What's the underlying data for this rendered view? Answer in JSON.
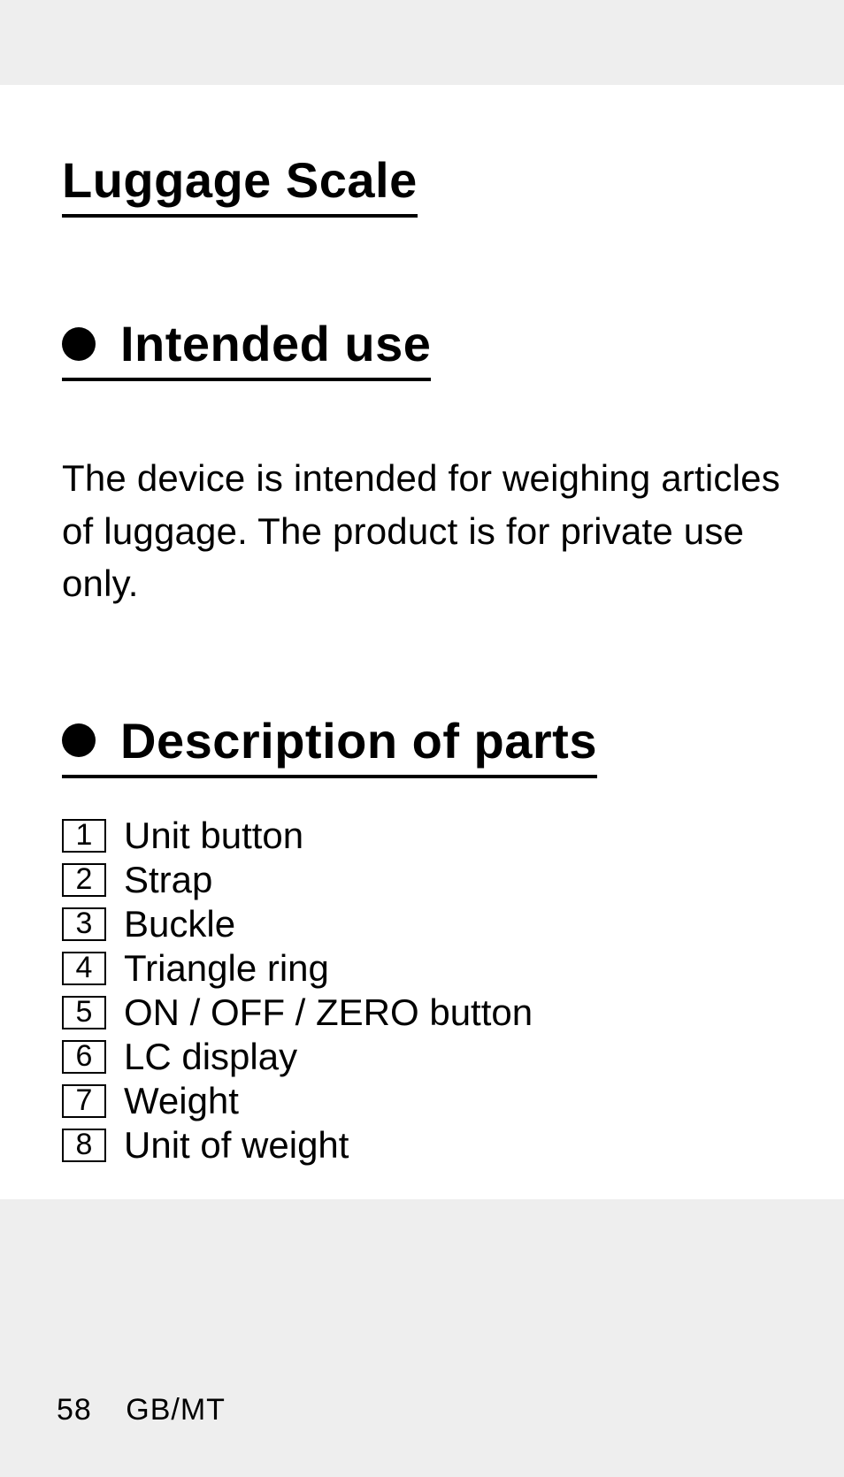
{
  "colors": {
    "page_bg": "#ffffff",
    "outer_bg": "#eeeeee",
    "text": "#000000",
    "rule": "#000000"
  },
  "typography": {
    "title_fontsize_pt": 42,
    "heading_fontsize_pt": 42,
    "body_fontsize_pt": 31,
    "footer_fontsize_pt": 25,
    "font_family": "Futura / geometric sans-serif"
  },
  "title": "Luggage Scale",
  "sections": [
    {
      "heading": "Intended use",
      "body": "The device is intended for weighing articles of luggage. The product is for private use only."
    },
    {
      "heading": "Description of parts",
      "parts": [
        {
          "n": "1",
          "label": "Unit button"
        },
        {
          "n": "2",
          "label": "Strap"
        },
        {
          "n": "3",
          "label": "Buckle"
        },
        {
          "n": "4",
          "label": "Triangle ring"
        },
        {
          "n": "5",
          "label": "ON / OFF / ZERO button"
        },
        {
          "n": "6",
          "label": "LC display"
        },
        {
          "n": "7",
          "label": "Weight"
        },
        {
          "n": "8",
          "label": "Unit of weight"
        }
      ]
    }
  ],
  "footer": {
    "page_number": "58",
    "region": "GB/MT"
  }
}
